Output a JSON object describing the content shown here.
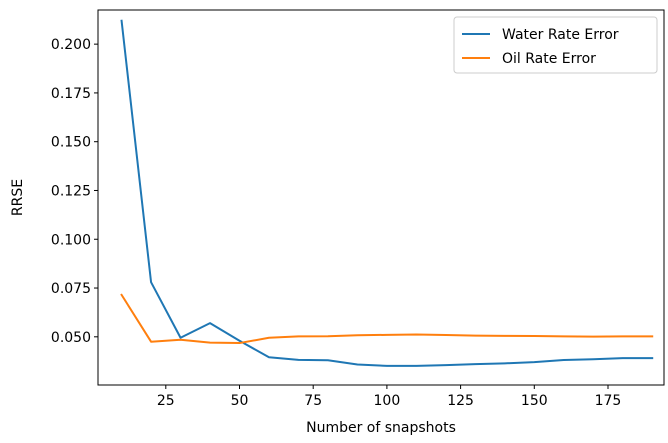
{
  "chart_data": {
    "type": "line",
    "title": "",
    "xlabel": "Number of snapshots",
    "ylabel": "RRSE",
    "xlim": [
      2,
      194
    ],
    "ylim": [
      0.0253,
      0.2175
    ],
    "xticks": [
      25,
      50,
      75,
      100,
      125,
      150,
      175
    ],
    "xtick_labels": [
      "25",
      "50",
      "75",
      "100",
      "125",
      "150",
      "175"
    ],
    "yticks": [
      0.05,
      0.075,
      0.1,
      0.125,
      0.15,
      0.175,
      0.2
    ],
    "ytick_labels": [
      "0.050",
      "0.075",
      "0.100",
      "0.125",
      "0.150",
      "0.175",
      "0.200"
    ],
    "grid": false,
    "legend_position": "top-right",
    "x": [
      10,
      20,
      30,
      40,
      50,
      60,
      70,
      80,
      90,
      100,
      110,
      120,
      130,
      140,
      150,
      160,
      170,
      180,
      190
    ],
    "series": [
      {
        "name": "Water Rate Error",
        "color": "#1f77b4",
        "values": [
          0.212,
          0.078,
          0.0495,
          0.057,
          0.048,
          0.0395,
          0.0382,
          0.038,
          0.0358,
          0.0351,
          0.0351,
          0.0355,
          0.036,
          0.0364,
          0.037,
          0.0381,
          0.0385,
          0.0391,
          0.0391
        ]
      },
      {
        "name": "Oil Rate Error",
        "color": "#ff7f0e",
        "values": [
          0.0715,
          0.0475,
          0.0485,
          0.047,
          0.0468,
          0.0495,
          0.0502,
          0.0503,
          0.0508,
          0.051,
          0.0512,
          0.0509,
          0.0506,
          0.0505,
          0.0504,
          0.0502,
          0.0501,
          0.0502,
          0.0502
        ]
      }
    ]
  }
}
